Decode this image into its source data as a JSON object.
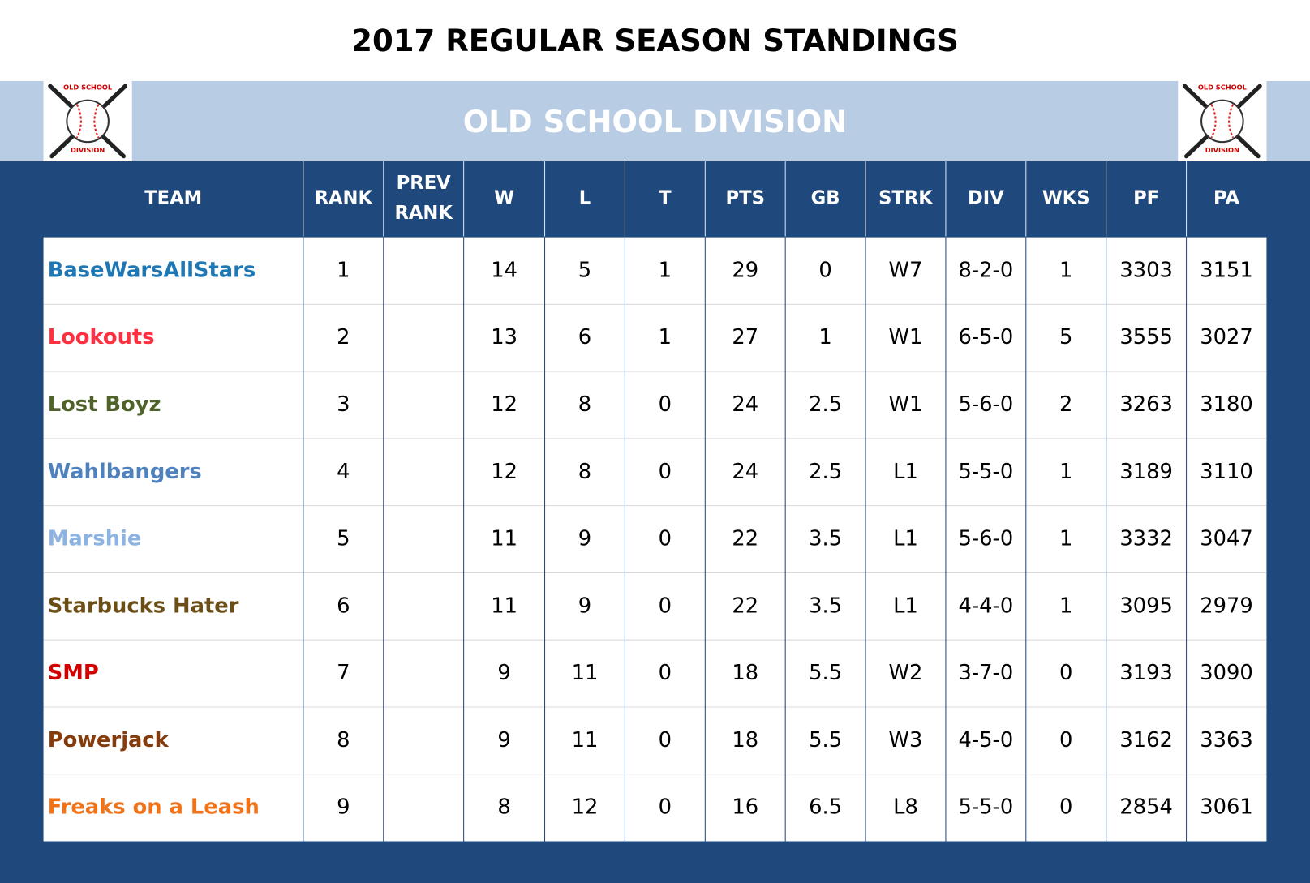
{
  "title": "2017 REGULAR SEASON STANDINGS",
  "division": "OLD SCHOOL DIVISION",
  "logo": {
    "top": "OLD SCHOOL",
    "bottom": "DIVISION"
  },
  "table": {
    "headers": [
      [
        "TEAM"
      ],
      [
        "RANK"
      ],
      [
        "PREV",
        "RANK"
      ],
      [
        "W"
      ],
      [
        "L"
      ],
      [
        "T"
      ],
      [
        "PTS"
      ],
      [
        "GB"
      ],
      [
        "STRK"
      ],
      [
        "DIV"
      ],
      [
        "WKS"
      ],
      [
        "PF"
      ],
      [
        "PA"
      ]
    ],
    "rows": [
      {
        "color": "#1f77b4",
        "cells": [
          "BaseWarsAllStars",
          1,
          null,
          14,
          5,
          1,
          29,
          0,
          "W7",
          "8-2-0",
          1,
          3303,
          3151
        ]
      },
      {
        "color": "#ff3040",
        "cells": [
          "Lookouts",
          2,
          null,
          13,
          6,
          1,
          27,
          1,
          "W1",
          "6-5-0",
          5,
          3555,
          3027
        ]
      },
      {
        "color": "#4f6228",
        "cells": [
          "Lost Boyz",
          3,
          null,
          12,
          8,
          0,
          24,
          2.5,
          "W1",
          "5-6-0",
          2,
          3263,
          3180
        ]
      },
      {
        "color": "#4f81bd",
        "cells": [
          "Wahlbangers",
          4,
          null,
          12,
          8,
          0,
          24,
          2.5,
          "L1",
          "5-5-0",
          1,
          3189,
          3110
        ]
      },
      {
        "color": "#8db3e2",
        "cells": [
          "Marshie",
          5,
          null,
          11,
          9,
          0,
          22,
          3.5,
          "L1",
          "5-6-0",
          1,
          3332,
          3047
        ]
      },
      {
        "color": "#6b4e16",
        "cells": [
          "Starbucks Hater",
          6,
          null,
          11,
          9,
          0,
          22,
          3.5,
          "L1",
          "4-4-0",
          1,
          3095,
          2979
        ]
      },
      {
        "color": "#d40000",
        "cells": [
          "SMP",
          7,
          null,
          9,
          11,
          0,
          18,
          5.5,
          "W2",
          "3-7-0",
          0,
          3193,
          3090
        ]
      },
      {
        "color": "#843c0c",
        "cells": [
          "Powerjack",
          8,
          null,
          9,
          11,
          0,
          18,
          5.5,
          "W3",
          "4-5-0",
          0,
          3162,
          3363
        ]
      },
      {
        "color": "#f47216",
        "cells": [
          "Freaks on a Leash",
          9,
          null,
          8,
          12,
          0,
          16,
          6.5,
          "L8",
          "5-5-0",
          0,
          2854,
          3061
        ]
      }
    ]
  }
}
